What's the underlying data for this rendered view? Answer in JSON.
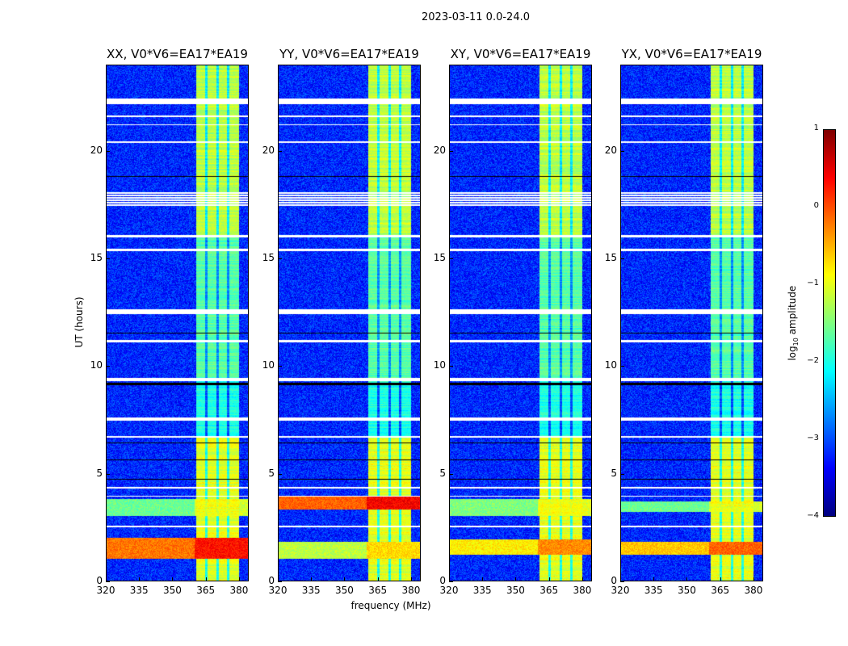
{
  "suptitle": "2023-03-11 0.0-24.0",
  "xlabel": "frequency (MHz)",
  "ylabel": "UT (hours)",
  "colorbar": {
    "label": "log10 amplitude",
    "label_main": "log",
    "label_sub": "10",
    "label_rest": " amplitude",
    "ticks": [
      "1",
      "0",
      "−1",
      "−2",
      "−3",
      "−4"
    ],
    "tick_values": [
      1,
      0,
      -1,
      -2,
      -3,
      -4
    ],
    "range": [
      -4,
      1
    ],
    "colormap": "jet"
  },
  "chart_data": {
    "type": "heatmap",
    "title": "2023-03-11 0.0-24.0",
    "xlabel": "frequency (MHz)",
    "ylabel": "UT (hours)",
    "xlim": [
      320,
      384.4
    ],
    "ylim": [
      0,
      24
    ],
    "xticks": [
      "320",
      "335",
      "350",
      "365",
      "380"
    ],
    "xtick_values": [
      320,
      335,
      350,
      365,
      380
    ],
    "yticks": [
      "0",
      "5",
      "10",
      "15",
      "20"
    ],
    "ytick_values": [
      0,
      5,
      10,
      15,
      20
    ],
    "background_level": -3.2,
    "band": {
      "freq": [
        360.7,
        380.3
      ],
      "dividers": [
        365.5,
        370.5,
        375.5
      ],
      "segments": [
        {
          "ut": [
            0,
            6.7
          ],
          "level": -1.0
        },
        {
          "ut": [
            6.7,
            9.3
          ],
          "level": -2.0
        },
        {
          "ut": [
            9.3,
            16
          ],
          "level": -1.7
        },
        {
          "ut": [
            16,
            24
          ],
          "level": -1.2
        }
      ]
    },
    "flagged_ut": [
      [
        22.2,
        22.45
      ],
      [
        21.6,
        21.65
      ],
      [
        21.2,
        21.25
      ],
      [
        20.4,
        20.45
      ],
      [
        17.4,
        18.1
      ],
      [
        16.0,
        16.1
      ],
      [
        15.35,
        15.45
      ],
      [
        12.4,
        12.65
      ],
      [
        11.1,
        11.2
      ],
      [
        9.3,
        9.45
      ],
      [
        7.45,
        7.6
      ],
      [
        6.65,
        6.75
      ],
      [
        4.3,
        4.35
      ],
      [
        3.9,
        3.95
      ],
      [
        2.5,
        2.55
      ]
    ],
    "dark_ut": [
      [
        18.8,
        18.85
      ],
      [
        11.5,
        11.55
      ],
      [
        9.1,
        9.2
      ],
      [
        6.4,
        6.45
      ],
      [
        5.6,
        5.65
      ],
      [
        4.7,
        4.75
      ]
    ],
    "panels": [
      {
        "title": "XX, V0*V6=EA17*EA19",
        "rfi": [
          {
            "ut": [
              1.0,
              2.0
            ],
            "level": -0.2
          },
          {
            "ut": [
              3.0,
              3.8
            ],
            "level": -1.6
          }
        ]
      },
      {
        "title": "YY, V0*V6=EA17*EA19",
        "rfi": [
          {
            "ut": [
              1.0,
              1.8
            ],
            "level": -1.2
          },
          {
            "ut": [
              3.3,
              3.9
            ],
            "level": -0.1
          }
        ]
      },
      {
        "title": "XY, V0*V6=EA17*EA19",
        "rfi": [
          {
            "ut": [
              1.2,
              1.9
            ],
            "level": -0.8
          },
          {
            "ut": [
              3.0,
              3.8
            ],
            "level": -1.5
          }
        ]
      },
      {
        "title": "YX, V0*V6=EA17*EA19",
        "rfi": [
          {
            "ut": [
              1.2,
              1.8
            ],
            "level": -0.6
          },
          {
            "ut": [
              3.2,
              3.7
            ],
            "level": -1.6
          }
        ]
      }
    ]
  }
}
